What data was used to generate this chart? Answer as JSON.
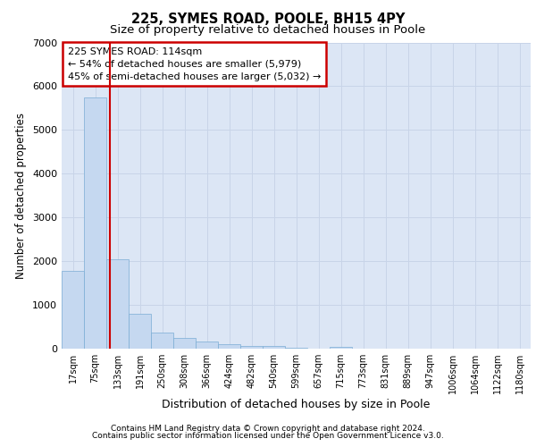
{
  "title1": "225, SYMES ROAD, POOLE, BH15 4PY",
  "title2": "Size of property relative to detached houses in Poole",
  "xlabel": "Distribution of detached houses by size in Poole",
  "ylabel": "Number of detached properties",
  "footer1": "Contains HM Land Registry data © Crown copyright and database right 2024.",
  "footer2": "Contains public sector information licensed under the Open Government Licence v3.0.",
  "categories": [
    "17sqm",
    "75sqm",
    "133sqm",
    "191sqm",
    "250sqm",
    "308sqm",
    "366sqm",
    "424sqm",
    "482sqm",
    "540sqm",
    "599sqm",
    "657sqm",
    "715sqm",
    "773sqm",
    "831sqm",
    "889sqm",
    "947sqm",
    "1006sqm",
    "1064sqm",
    "1122sqm",
    "1180sqm"
  ],
  "values": [
    1780,
    5750,
    2050,
    800,
    370,
    240,
    160,
    100,
    70,
    55,
    25,
    0,
    50,
    0,
    0,
    0,
    0,
    0,
    0,
    0,
    0
  ],
  "bar_color": "#c5d8f0",
  "bar_edge_color": "#7aadd4",
  "grid_color": "#c8d4e8",
  "background_color": "#dce6f5",
  "annotation_text": "225 SYMES ROAD: 114sqm\n← 54% of detached houses are smaller (5,979)\n45% of semi-detached houses are larger (5,032) →",
  "annotation_box_color": "#ffffff",
  "annotation_box_edge": "#cc0000",
  "ylim": [
    0,
    7000
  ],
  "yticks": [
    0,
    1000,
    2000,
    3000,
    4000,
    5000,
    6000,
    7000
  ]
}
